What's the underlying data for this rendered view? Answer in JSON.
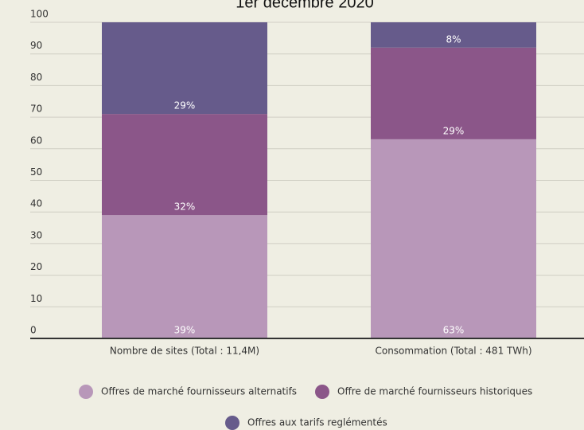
{
  "chart_data": {
    "type": "stacked_bar",
    "title": "1er décembre 2020",
    "categories": [
      "Nombre de sites (Total : 11,4M)",
      "Consommation (Total : 481 TWh)"
    ],
    "series": [
      {
        "name": "Offres de marché fournisseurs alternatifs",
        "color": "#b897b9",
        "values": [
          39,
          63
        ],
        "value_labels": [
          "39%",
          "63%"
        ]
      },
      {
        "name": "Offre de marché fournisseurs historiques",
        "color": "#8b5689",
        "values": [
          32,
          29
        ],
        "value_labels": [
          "32%",
          "29%"
        ]
      },
      {
        "name": "Offres aux tarifs reglémentés",
        "color": "#665b8b",
        "values": [
          29,
          8
        ],
        "value_labels": [
          "29%",
          "8%"
        ]
      }
    ],
    "ylim": [
      0,
      100
    ],
    "yticks": [
      0,
      10,
      20,
      30,
      40,
      50,
      60,
      70,
      80,
      90,
      100
    ],
    "grid": true,
    "legend": "bottom"
  }
}
